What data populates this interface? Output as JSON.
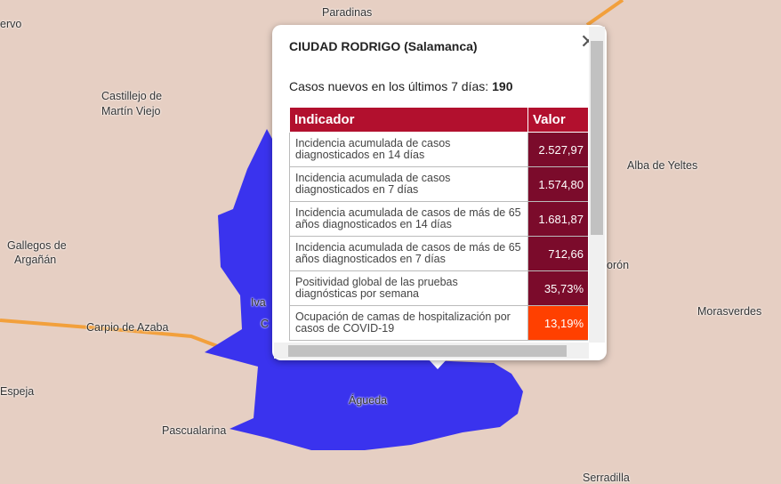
{
  "map": {
    "labels": [
      {
        "text": "Paradinas"
      },
      {
        "text": "ervo"
      },
      {
        "text": "Castillejo de"
      },
      {
        "text": "Martín Viejo"
      },
      {
        "text": "Alba de Yeltes"
      },
      {
        "text": "Gallegos de"
      },
      {
        "text": "Argañán"
      },
      {
        "text": "orón"
      },
      {
        "text": "Morasverdes"
      },
      {
        "text": "Carpio de Azaba"
      },
      {
        "text": "Iva"
      },
      {
        "text": "C"
      },
      {
        "text": "Espeja"
      },
      {
        "text": "Águeda"
      },
      {
        "text": "Pascualarina"
      },
      {
        "text": "Serradilla"
      }
    ]
  },
  "popup": {
    "title": "CIUDAD RODRIGO (Salamanca)",
    "cases_label": "Casos nuevos en los últimos 7 días:",
    "cases_value": "190",
    "table": {
      "header": [
        "Indicador",
        "Valor"
      ],
      "rows": [
        [
          "Incidencia acumulada de casos diagnosticados en 14 días",
          "2.527,97"
        ],
        [
          "Incidencia acumulada de casos diagnosticados en 7 días",
          "1.574,80"
        ],
        [
          "Incidencia acumulada de casos de más de 65 años diagnosticados en 14 días",
          "1.681,87"
        ],
        [
          "Incidencia acumulada de casos de más de 65 años diagnosticados en 7 días",
          "712,66"
        ],
        [
          "Positividad global de las pruebas diagnósticas por semana",
          "35,73%"
        ],
        [
          "Ocupación de camas de hospitalización por casos de COVID-19",
          "13,19%"
        ]
      ]
    }
  }
}
